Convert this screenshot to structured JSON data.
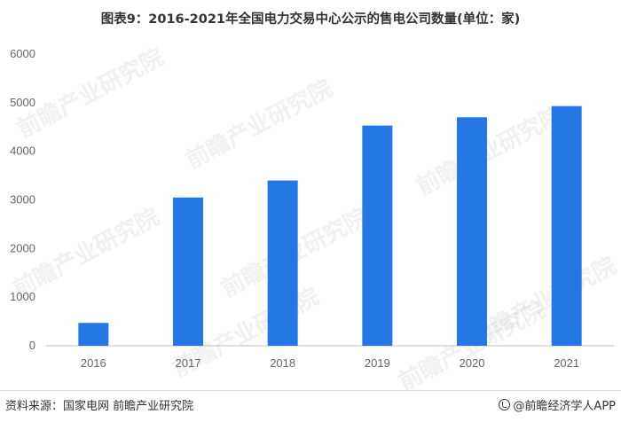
{
  "title": "图表9：2016-2021年全国电力交易中心公示的售电公司数量(单位：家)",
  "source": "资料来源：国家电网 前瞻产业研究院",
  "brand": "@前瞻经济学人APP",
  "watermark": "前瞻产业研究院",
  "colors": {
    "bar": "#2677e6",
    "axis": "#bfbfbf"
  },
  "chart_data": {
    "type": "bar",
    "title": "图表9：2016-2021年全国电力交易中心公示的售电公司数量(单位：家)",
    "categories": [
      "2016",
      "2017",
      "2018",
      "2019",
      "2020",
      "2021"
    ],
    "values": [
      470,
      3050,
      3400,
      4530,
      4700,
      4930
    ],
    "ylim": [
      0,
      6000
    ],
    "yticks": [
      0,
      1000,
      2000,
      3000,
      4000,
      5000,
      6000
    ],
    "grid": false,
    "legend": "none"
  }
}
